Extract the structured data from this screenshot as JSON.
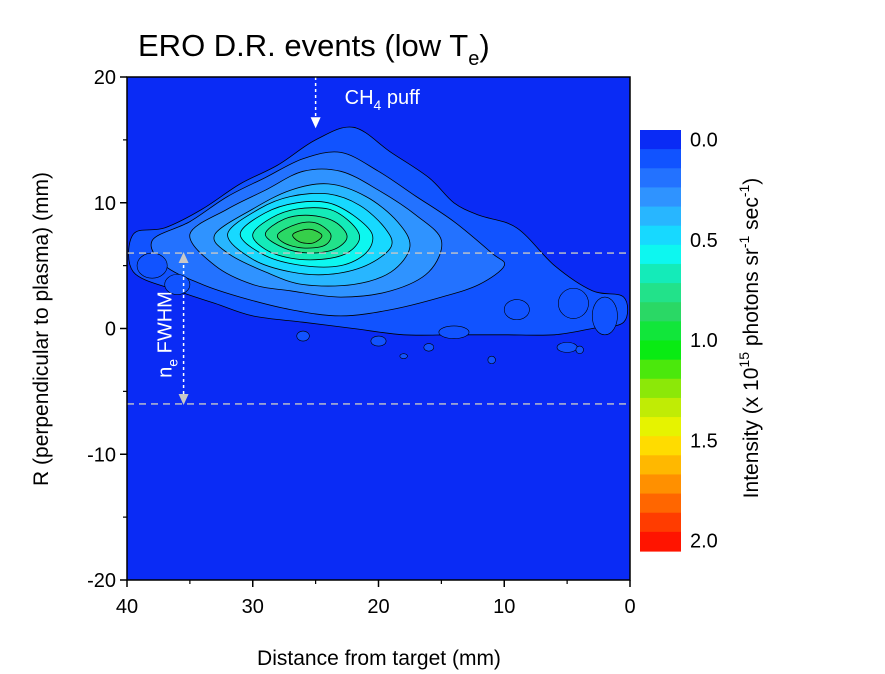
{
  "chart_data": {
    "type": "heatmap",
    "title": {
      "main": "ERO D.R. events (low T",
      "sub": "e",
      "close": ")"
    },
    "xlabel": "Distance from target (mm)",
    "ylabel": "R (perpendicular to plasma) (mm)",
    "xlim": [
      40,
      0
    ],
    "ylim": [
      -20,
      20
    ],
    "x_ticks": [
      "40",
      "30",
      "20",
      "10",
      "0"
    ],
    "x_tick_values": [
      40,
      30,
      20,
      10,
      0
    ],
    "y_ticks": [
      "20",
      "10",
      "0",
      "-10",
      "-20"
    ],
    "y_tick_values": [
      20,
      10,
      0,
      -10,
      -20
    ],
    "background_color": "#0a2bf5",
    "annotations": {
      "puff": {
        "pre": "CH",
        "sub": "4",
        "post": " puff",
        "x": 25,
        "y_from": 20,
        "y_to": 16
      },
      "fwhm": {
        "pre": "n",
        "sub": "e",
        "post": " FWHM",
        "x": 35.5,
        "y_from": 6,
        "y_to": -6
      },
      "dashed_lines_y": [
        6,
        -6
      ]
    },
    "contour_levels": [
      0.0,
      0.1,
      0.2,
      0.3,
      0.4,
      0.5,
      0.6,
      0.7,
      0.8,
      0.9,
      1.0
    ],
    "contours": [
      {
        "level": 0.1,
        "color": "#1153ff",
        "points": [
          [
            39.5,
            7.5
          ],
          [
            37,
            8
          ],
          [
            34,
            9.5
          ],
          [
            31,
            11.5
          ],
          [
            28,
            13
          ],
          [
            25,
            15
          ],
          [
            22,
            16
          ],
          [
            19,
            14
          ],
          [
            16,
            12
          ],
          [
            14,
            10
          ],
          [
            12,
            9
          ],
          [
            9,
            8
          ],
          [
            6,
            5
          ],
          [
            3,
            3
          ],
          [
            0.5,
            2.5
          ],
          [
            0.5,
            0.5
          ],
          [
            3,
            0
          ],
          [
            6,
            -0.5
          ],
          [
            10,
            -0.5
          ],
          [
            14,
            -0.5
          ],
          [
            18,
            -0.5
          ],
          [
            22,
            0
          ],
          [
            26,
            0.5
          ],
          [
            30,
            1
          ],
          [
            33,
            2
          ],
          [
            36,
            3
          ],
          [
            39.5,
            4.5
          ]
        ]
      },
      {
        "level": 0.2,
        "color": "#2372ff",
        "points": [
          [
            38,
            7
          ],
          [
            35,
            8.5
          ],
          [
            32,
            10.5
          ],
          [
            29,
            12
          ],
          [
            26,
            13.5
          ],
          [
            23,
            14
          ],
          [
            20,
            12.5
          ],
          [
            17,
            10.5
          ],
          [
            14,
            8.5
          ],
          [
            11,
            6
          ],
          [
            10,
            5
          ],
          [
            12,
            3.5
          ],
          [
            15,
            2.5
          ],
          [
            19,
            1.5
          ],
          [
            23,
            1
          ],
          [
            27,
            1.5
          ],
          [
            31,
            2.5
          ],
          [
            34,
            3.5
          ],
          [
            37,
            5
          ]
        ]
      },
      {
        "level": 0.3,
        "color": "#2f93ff",
        "points": [
          [
            35,
            7.5
          ],
          [
            32,
            9.5
          ],
          [
            29,
            11
          ],
          [
            26,
            12.5
          ],
          [
            23,
            12.5
          ],
          [
            20,
            11
          ],
          [
            17,
            9
          ],
          [
            15,
            7
          ],
          [
            16,
            4.5
          ],
          [
            19,
            3
          ],
          [
            23,
            2.5
          ],
          [
            27,
            3
          ],
          [
            30,
            3.5
          ],
          [
            33,
            5
          ]
        ]
      },
      {
        "level": 0.4,
        "color": "#28b6ff",
        "points": [
          [
            33,
            7.5
          ],
          [
            30,
            9.5
          ],
          [
            27,
            11
          ],
          [
            24,
            11.5
          ],
          [
            21,
            10.5
          ],
          [
            18.5,
            8.5
          ],
          [
            17.5,
            6.5
          ],
          [
            19,
            4.5
          ],
          [
            22,
            3.5
          ],
          [
            26,
            3.5
          ],
          [
            29,
            4.5
          ],
          [
            32,
            6
          ]
        ]
      },
      {
        "level": 0.5,
        "color": "#17d9ff",
        "points": [
          [
            32,
            7.5
          ],
          [
            29.5,
            9.5
          ],
          [
            27,
            10.5
          ],
          [
            24,
            10.7
          ],
          [
            21.5,
            9.8
          ],
          [
            19.5,
            8
          ],
          [
            19,
            6.5
          ],
          [
            21,
            5
          ],
          [
            24,
            4.3
          ],
          [
            27,
            4.5
          ],
          [
            30,
            5.5
          ]
        ]
      },
      {
        "level": 0.6,
        "color": "#0df7f0",
        "points": [
          [
            31,
            7.5
          ],
          [
            29,
            9.2
          ],
          [
            26.5,
            10
          ],
          [
            24,
            10
          ],
          [
            22,
            9
          ],
          [
            20.5,
            7.5
          ],
          [
            21,
            6
          ],
          [
            23,
            5
          ],
          [
            26,
            5
          ],
          [
            29,
            5.8
          ]
        ]
      },
      {
        "level": 0.7,
        "color": "#14ebb9",
        "points": [
          [
            30,
            7.5
          ],
          [
            28.5,
            8.8
          ],
          [
            26.5,
            9.5
          ],
          [
            24,
            9.5
          ],
          [
            22.3,
            8.5
          ],
          [
            21.5,
            7.2
          ],
          [
            22.5,
            6
          ],
          [
            24.5,
            5.5
          ],
          [
            27,
            5.6
          ],
          [
            29,
            6.3
          ]
        ]
      },
      {
        "level": 0.8,
        "color": "#22e28a",
        "points": [
          [
            29,
            7.5
          ],
          [
            27.5,
            8.7
          ],
          [
            25.5,
            9
          ],
          [
            23.5,
            8.5
          ],
          [
            22.5,
            7.3
          ],
          [
            23.5,
            6.3
          ],
          [
            25.5,
            6
          ],
          [
            27.5,
            6.4
          ]
        ]
      },
      {
        "level": 0.9,
        "color": "#2ad865",
        "points": [
          [
            28,
            7.5
          ],
          [
            26.5,
            8.3
          ],
          [
            25,
            8.4
          ],
          [
            23.8,
            7.5
          ],
          [
            24.3,
            6.6
          ],
          [
            26,
            6.4
          ],
          [
            27.5,
            6.8
          ]
        ]
      },
      {
        "level": 1.0,
        "color": "#36cf4a",
        "points": [
          [
            26.8,
            7.5
          ],
          [
            25.5,
            7.9
          ],
          [
            24.5,
            7.4
          ],
          [
            25.2,
            6.8
          ],
          [
            26.3,
            6.9
          ]
        ]
      }
    ],
    "colorbar": {
      "label": {
        "pre": "Intensity (x 10",
        "exp1": "15",
        "mid": " photons sr",
        "exp2": "-1",
        "mid2": " sec",
        "exp3": "-1",
        "close": ")"
      },
      "range": [
        0.0,
        2.1
      ],
      "tick_labels": [
        "0.0",
        "0.5",
        "1.0",
        "1.5",
        "2.0"
      ],
      "tick_values": [
        0.0,
        0.5,
        1.0,
        1.5,
        2.0
      ],
      "colors": [
        "#0a2bf5",
        "#1153ff",
        "#2372ff",
        "#2f93ff",
        "#28b6ff",
        "#17d9ff",
        "#0df7f0",
        "#14ebb9",
        "#22e28a",
        "#2ad865",
        "#11e63a",
        "#09eb13",
        "#4be80c",
        "#8ce808",
        "#c0ec05",
        "#e6f300",
        "#ffdc00",
        "#ffb800",
        "#ff9000",
        "#ff6600",
        "#ff3c00",
        "#ff1400"
      ]
    }
  }
}
